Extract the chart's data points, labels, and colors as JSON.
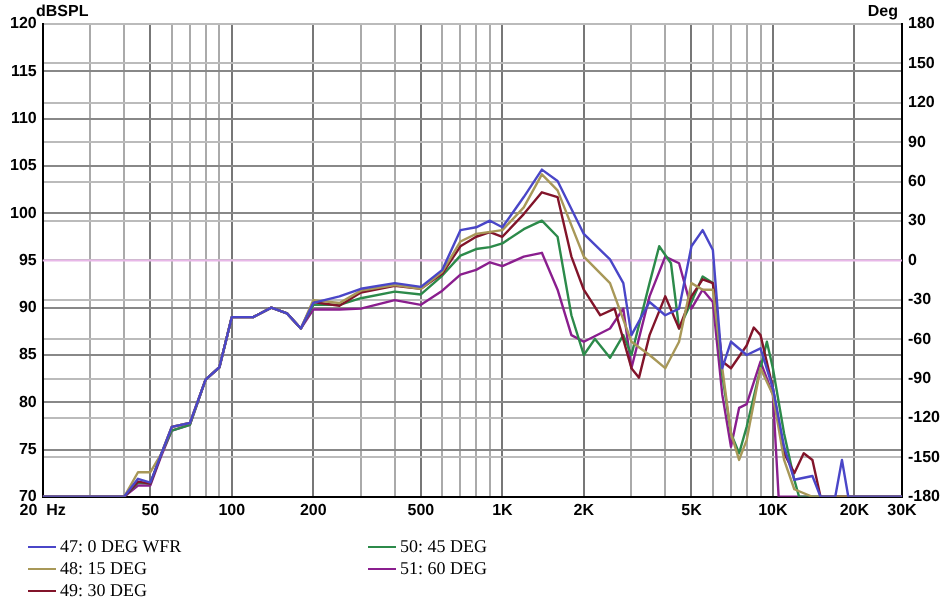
{
  "chart_data": {
    "type": "line",
    "ylabel": "dBSPL",
    "y2label": "Deg",
    "log": "x",
    "grid": true,
    "legend": "bottom left",
    "marker": "none",
    "line_style": "solid",
    "xlim": [
      20,
      30000
    ],
    "xticks": [
      {
        "value": 20,
        "label": "20  Hz"
      },
      {
        "value": 30,
        "label": null
      },
      {
        "value": 40,
        "label": null
      },
      50,
      {
        "value": 60,
        "label": null
      },
      {
        "value": 70,
        "label": null
      },
      {
        "value": 80,
        "label": null
      },
      {
        "value": 90,
        "label": null
      },
      100,
      200,
      {
        "value": 300,
        "label": null
      },
      {
        "value": 400,
        "label": null
      },
      500,
      {
        "value": 600,
        "label": null
      },
      {
        "value": 700,
        "label": null
      },
      {
        "value": 800,
        "label": null
      },
      {
        "value": 900,
        "label": null
      },
      {
        "value": 1000,
        "label": "1K"
      },
      {
        "value": 2000,
        "label": "2K"
      },
      {
        "value": 3000,
        "label": null
      },
      {
        "value": 4000,
        "label": null
      },
      {
        "value": 5000,
        "label": "5K"
      },
      {
        "value": 6000,
        "label": null
      },
      {
        "value": 7000,
        "label": null
      },
      {
        "value": 8000,
        "label": null
      },
      {
        "value": 9000,
        "label": null
      },
      {
        "value": 10000,
        "label": "10K"
      },
      {
        "value": 20000,
        "label": "20K"
      },
      {
        "value": 30000,
        "label": "30K"
      }
    ],
    "ylim": [
      70,
      120
    ],
    "yticks": [
      70,
      75,
      80,
      85,
      90,
      95,
      100,
      105,
      110,
      115,
      120
    ],
    "y2lim": [
      -180,
      180
    ],
    "y2ticks": [
      -180,
      -150,
      -120,
      -90,
      -60,
      -30,
      0,
      30,
      60,
      90,
      120,
      150,
      180
    ],
    "ref_lines": [
      {
        "axis": "y2",
        "value": 0,
        "color": "#e8b8e8"
      }
    ],
    "series": [
      {
        "name": "47: 0 DEG WFR",
        "color": "#4a46c8",
        "x": [
          20,
          40,
          45,
          50,
          55,
          60,
          70,
          80,
          90,
          100,
          120,
          140,
          160,
          180,
          200,
          250,
          300,
          400,
          500,
          600,
          700,
          800,
          900,
          1000,
          1200,
          1400,
          1600,
          2000,
          2500,
          2800,
          3000,
          3500,
          4000,
          4500,
          5000,
          5500,
          6000,
          6500,
          7000,
          8000,
          9000,
          10000,
          11000,
          12000,
          14000,
          15000,
          17000,
          18000,
          19000,
          30000
        ],
        "values": [
          70,
          70,
          71.9,
          71.5,
          74.6,
          77.4,
          77.8,
          82.4,
          83.7,
          89,
          89,
          90,
          89.4,
          87.8,
          90.5,
          91.2,
          92,
          92.6,
          92.2,
          94,
          98.2,
          98.5,
          99.2,
          98.5,
          101.7,
          104.6,
          103.4,
          97.8,
          95.1,
          92.6,
          87.1,
          90.6,
          89.2,
          89.9,
          96.5,
          98.2,
          96.1,
          83.6,
          86.4,
          85,
          85.7,
          81.5,
          75.3,
          71.8,
          72.2,
          70,
          70,
          73.9,
          70,
          70
        ]
      },
      {
        "name": "48: 15 DEG",
        "color": "#a89858",
        "x": [
          20,
          40,
          45,
          50,
          55,
          60,
          70,
          80,
          90,
          100,
          120,
          140,
          160,
          180,
          200,
          250,
          300,
          400,
          500,
          600,
          700,
          800,
          1000,
          1200,
          1400,
          1600,
          2000,
          2500,
          3000,
          3500,
          4000,
          4500,
          5000,
          5500,
          6000,
          6500,
          7000,
          7500,
          8000,
          9000,
          10000,
          11000,
          12000,
          14000,
          30000
        ],
        "values": [
          70,
          70,
          72.6,
          72.6,
          74.6,
          77.4,
          77.8,
          82.4,
          83.7,
          89,
          89,
          90,
          89.4,
          87.8,
          90.8,
          90.5,
          91.8,
          92.4,
          92,
          93.8,
          97,
          97.8,
          98.2,
          100.6,
          104.1,
          102.4,
          95.4,
          92.6,
          86.4,
          85,
          83.6,
          86.4,
          92.6,
          91.9,
          91.9,
          83.6,
          76.7,
          73.9,
          76,
          83.6,
          80.8,
          73.9,
          70.8,
          70,
          70
        ]
      },
      {
        "name": "49: 30 DEG",
        "color": "#82142a",
        "x": [
          20,
          40,
          45,
          50,
          55,
          60,
          70,
          80,
          90,
          100,
          120,
          140,
          160,
          180,
          200,
          250,
          300,
          400,
          500,
          600,
          700,
          800,
          900,
          1000,
          1200,
          1400,
          1600,
          1800,
          2000,
          2300,
          2600,
          3000,
          3200,
          3500,
          4000,
          4500,
          5000,
          5500,
          6000,
          6500,
          7000,
          8000,
          8500,
          9000,
          10000,
          11000,
          12000,
          13000,
          14000,
          15000,
          30000
        ],
        "values": [
          70,
          70,
          71.6,
          71.4,
          74.6,
          77.4,
          77.8,
          82.4,
          83.7,
          89,
          89,
          90,
          89.4,
          87.8,
          90.6,
          90.2,
          91.6,
          92.3,
          92,
          93.6,
          96.5,
          97.5,
          98,
          97.5,
          99.9,
          102.2,
          101.7,
          95.4,
          91.9,
          89.2,
          89.9,
          83.6,
          82.6,
          87.1,
          91.2,
          87.8,
          91.2,
          93,
          92.6,
          84.3,
          83.6,
          86,
          87.9,
          87.1,
          81.5,
          74.6,
          72.5,
          74.6,
          73.9,
          70,
          70
        ]
      },
      {
        "name": "50: 45 DEG",
        "color": "#2c8a4a",
        "x": [
          20,
          40,
          45,
          50,
          55,
          60,
          70,
          80,
          90,
          100,
          120,
          140,
          160,
          180,
          200,
          250,
          300,
          400,
          500,
          600,
          700,
          800,
          900,
          1000,
          1200,
          1400,
          1600,
          1800,
          2000,
          2200,
          2500,
          2800,
          3000,
          3500,
          3800,
          4200,
          4500,
          5000,
          5500,
          6000,
          6500,
          7000,
          7500,
          8000,
          9000,
          9500,
          10000,
          11000,
          12000,
          12500,
          30000
        ],
        "values": [
          70,
          70,
          71.5,
          71.4,
          74.6,
          77,
          77.6,
          82.4,
          83.7,
          89,
          89,
          90,
          89.4,
          87.8,
          90.3,
          90.3,
          91,
          91.7,
          91.4,
          93.4,
          95.5,
          96.2,
          96.4,
          96.8,
          98.3,
          99.2,
          97.5,
          89.2,
          85,
          86.7,
          84.7,
          87.1,
          85,
          92.6,
          96.5,
          94.7,
          87.8,
          90.6,
          93.3,
          92.6,
          82.9,
          76.7,
          74.6,
          77.4,
          83.6,
          86.4,
          83.6,
          76.7,
          71.8,
          70,
          70
        ]
      },
      {
        "name": "51: 60 DEG",
        "color": "#8a1e8e",
        "x": [
          20,
          40,
          45,
          50,
          55,
          60,
          70,
          80,
          90,
          100,
          120,
          140,
          160,
          180,
          200,
          250,
          300,
          400,
          500,
          600,
          700,
          800,
          900,
          1000,
          1200,
          1400,
          1600,
          1800,
          2000,
          2500,
          2800,
          3000,
          3500,
          4000,
          4500,
          5000,
          5500,
          6000,
          6500,
          7000,
          7500,
          8000,
          9000,
          10000,
          10500,
          30000
        ],
        "values": [
          70,
          70,
          71.2,
          71.2,
          74.4,
          77,
          77.6,
          82.4,
          83.7,
          89,
          89,
          90,
          89.4,
          87.8,
          89.8,
          89.8,
          89.9,
          90.8,
          90.3,
          91.8,
          93.5,
          94,
          94.8,
          94.4,
          95.4,
          95.8,
          91.9,
          87.1,
          86.4,
          87.8,
          89.9,
          83.6,
          91.2,
          95.4,
          94.7,
          89.9,
          91.9,
          90.6,
          80.8,
          75.3,
          79.4,
          79.8,
          84.3,
          80.8,
          70,
          70
        ]
      }
    ]
  }
}
